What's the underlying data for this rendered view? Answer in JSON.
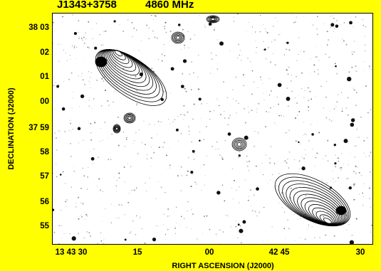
{
  "colors": {
    "background": "#ffff00",
    "ink": "#000000"
  },
  "header": {
    "source": "J1343+3758",
    "frequency": "4860 MHz"
  },
  "axes": {
    "ylabel": "DECLINATION (J2000)",
    "xlabel": "RIGHT ASCENSION (J2000)",
    "yticks": [
      "38 03",
      "02",
      "01",
      "00",
      "37 59",
      "58",
      "57",
      "56",
      "55"
    ],
    "xticks": [
      "13 43 30",
      "15",
      "00",
      "42 45",
      "30"
    ]
  }
}
